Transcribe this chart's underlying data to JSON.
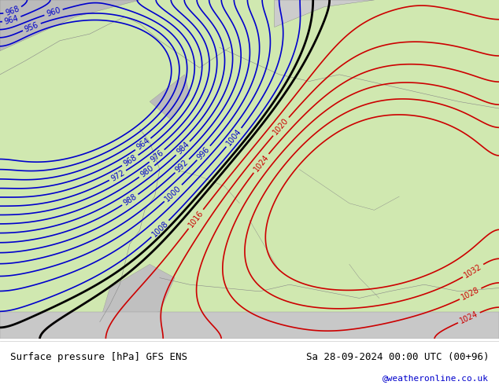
{
  "title_left": "Surface pressure [hPa] GFS ENS",
  "title_right": "Sa 28-09-2024 00:00 UTC (00+96)",
  "credit": "@weatheronline.co.uk",
  "bg_color": "#d0e8b0",
  "land_gray": "#c8c8c8",
  "sea_blue": "#b0d0f0",
  "blue_contour_color": "#0000cc",
  "red_contour_color": "#cc0000",
  "black_contour_color": "#000000",
  "text_color": "#000000",
  "credit_color": "#0000cc",
  "figsize": [
    6.34,
    4.9
  ],
  "dpi": 100
}
